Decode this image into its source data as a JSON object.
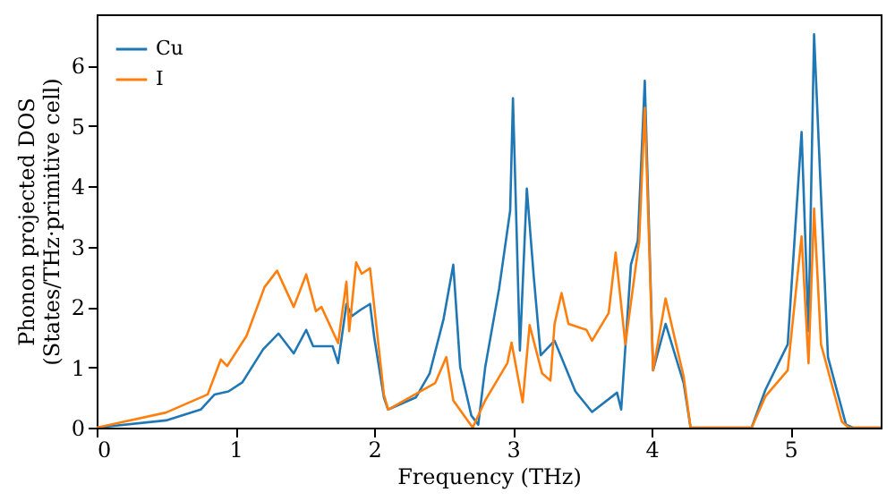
{
  "chart_data": {
    "type": "line",
    "xlabel": "Frequency (THz)",
    "ylabel": "Phonon projected DOS\n(States/THz·primitive cell)",
    "xlim": [
      0,
      5.65
    ],
    "ylim": [
      0,
      6.85
    ],
    "xticks": [
      0,
      1,
      2,
      3,
      4,
      5
    ],
    "yticks": [
      0,
      1,
      2,
      3,
      4,
      5,
      6
    ],
    "grid": false,
    "legend": "top left",
    "marker": "none",
    "line_style": "solid",
    "series": [
      {
        "name": "Cu",
        "color": "#1f77b4",
        "x": [
          0,
          0.5,
          0.75,
          0.85,
          0.95,
          1.05,
          1.2,
          1.31,
          1.42,
          1.51,
          1.56,
          1.7,
          1.74,
          1.8,
          1.84,
          1.9,
          1.97,
          2.0,
          2.07,
          2.1,
          2.3,
          2.4,
          2.5,
          2.57,
          2.62,
          2.7,
          2.75,
          2.8,
          2.9,
          2.98,
          3.0,
          3.05,
          3.1,
          3.15,
          3.2,
          3.3,
          3.45,
          3.57,
          3.75,
          3.78,
          3.85,
          3.9,
          3.95,
          4.01,
          4.1,
          4.23,
          4.28,
          4.72,
          4.82,
          4.98,
          5.08,
          5.13,
          5.17,
          5.27,
          5.4,
          5.45,
          5.65
        ],
        "values": [
          0,
          0.12,
          0.3,
          0.55,
          0.6,
          0.75,
          1.3,
          1.56,
          1.23,
          1.62,
          1.35,
          1.35,
          1.07,
          2.05,
          1.85,
          1.95,
          2.05,
          1.5,
          0.5,
          0.3,
          0.5,
          0.9,
          1.8,
          2.7,
          1.0,
          0.2,
          0.05,
          1.0,
          2.3,
          3.6,
          5.46,
          1.28,
          3.96,
          2.5,
          1.2,
          1.44,
          0.6,
          0.26,
          0.58,
          0.3,
          2.7,
          3.1,
          5.75,
          0.95,
          1.72,
          0.74,
          0,
          0,
          0.63,
          1.38,
          4.9,
          1.6,
          6.52,
          1.17,
          0.05,
          0,
          0
        ]
      },
      {
        "name": "I",
        "color": "#ff7f0e",
        "x": [
          0,
          0.5,
          0.8,
          0.895,
          0.94,
          1.08,
          1.21,
          1.3,
          1.42,
          1.51,
          1.58,
          1.62,
          1.74,
          1.8,
          1.82,
          1.87,
          1.91,
          1.97,
          2.07,
          2.1,
          2.44,
          2.52,
          2.57,
          2.71,
          2.8,
          2.96,
          2.99,
          3.07,
          3.12,
          3.21,
          3.27,
          3.3,
          3.35,
          3.4,
          3.53,
          3.57,
          3.69,
          3.74,
          3.81,
          3.91,
          3.95,
          4.01,
          4.1,
          4.17,
          4.23,
          4.28,
          4.72,
          4.82,
          4.98,
          5.08,
          5.13,
          5.17,
          5.22,
          5.37,
          5.42,
          5.65
        ],
        "values": [
          0,
          0.25,
          0.55,
          1.13,
          1.02,
          1.52,
          2.33,
          2.6,
          2.0,
          2.54,
          1.93,
          2.0,
          1.4,
          2.42,
          1.6,
          2.74,
          2.55,
          2.64,
          0.55,
          0.3,
          0.74,
          1.17,
          0.45,
          0,
          0.45,
          1.07,
          1.41,
          0.42,
          1.7,
          0.9,
          0.78,
          1.72,
          2.23,
          1.72,
          1.62,
          1.44,
          1.9,
          2.9,
          1.38,
          3.1,
          5.3,
          0.95,
          2.14,
          1.44,
          0.85,
          0,
          0,
          0.52,
          0.95,
          3.17,
          1.07,
          3.63,
          1.38,
          0.1,
          0,
          0
        ]
      }
    ]
  }
}
